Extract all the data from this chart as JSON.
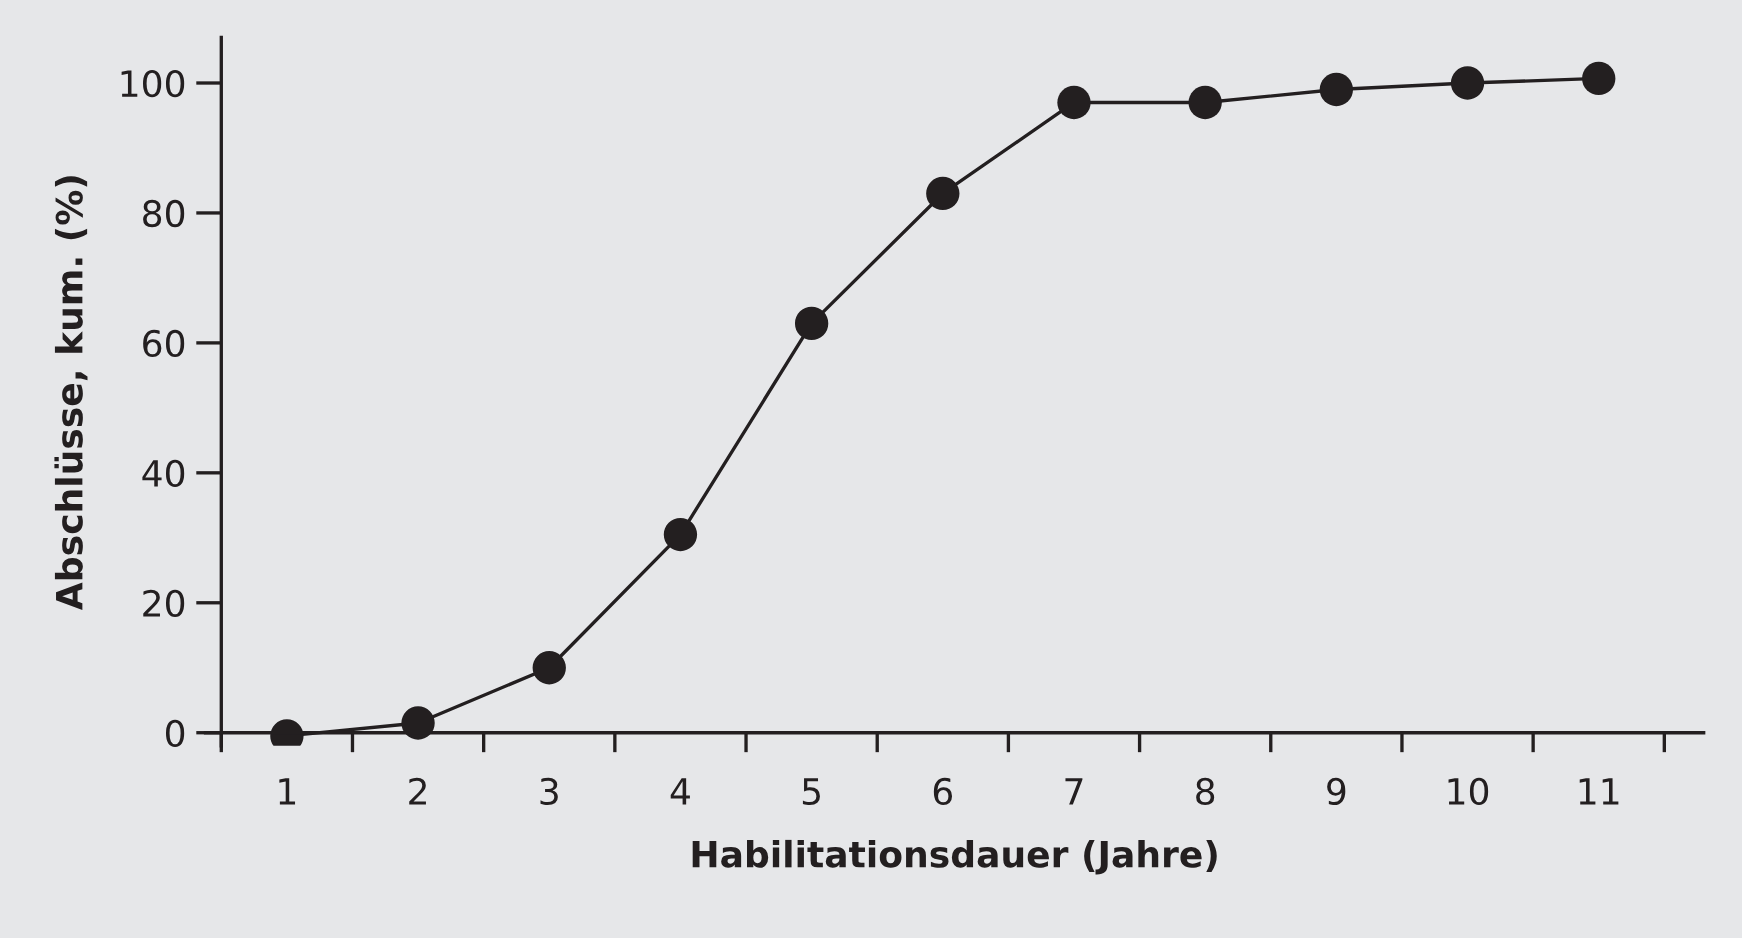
{
  "chart_data": {
    "type": "line",
    "xlabel": "Habilitationsdauer (Jahre)",
    "ylabel": "Abschlüsse, kum. (%)",
    "categories": [
      "1",
      "2",
      "3",
      "4",
      "5",
      "6",
      "7",
      "8",
      "9",
      "10",
      "11"
    ],
    "series": [
      {
        "color": "#231f20",
        "values": [
          -0.5,
          1.5,
          10,
          30.5,
          63,
          83,
          97,
          97,
          99,
          100,
          100.7
        ]
      }
    ],
    "ylim": [
      -2,
      107
    ],
    "yticks": [
      0,
      20,
      40,
      60,
      80,
      100
    ],
    "marker": "circle",
    "line_style": "solid",
    "grid": false
  }
}
